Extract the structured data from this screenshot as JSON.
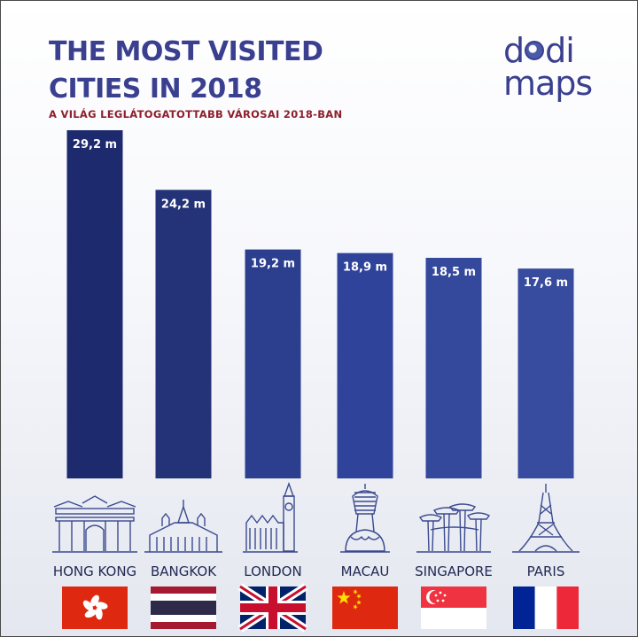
{
  "header": {
    "title_line1": "THE MOST VISITED",
    "title_line2": "CITIES IN 2018",
    "subtitle": "A VILÁG LEGLÁTOGATOTTABB VÁROSAI 2018-BAN"
  },
  "logo": {
    "top": "d",
    "top_end": "di",
    "bottom": "maps"
  },
  "colors": {
    "title": "#3a3f8f",
    "subtitle": "#8e1f2c",
    "bar_dark": "#1d2a6e",
    "bar_mid": "#2c3f8f",
    "bar_light": "#35489a"
  },
  "chart_data": {
    "type": "bar",
    "categories": [
      "HONG KONG",
      "BANGKOK",
      "LONDON",
      "MACAU",
      "SINGAPORE",
      "PARIS"
    ],
    "values": [
      29.2,
      24.2,
      19.2,
      18.9,
      18.5,
      17.6
    ],
    "value_labels": [
      "29,2 m",
      "24,2 m",
      "19,2 m",
      "18,9 m",
      "18,5 m",
      "17,6 m"
    ],
    "landmark_icons": [
      "gate-icon",
      "temple-icon",
      "big-ben-icon",
      "lotus-tower-icon",
      "supertree-icon",
      "eiffel-tower-icon"
    ],
    "flag_icons": [
      "hong-kong-flag-icon",
      "thailand-flag-icon",
      "uk-flag-icon",
      "china-flag-icon",
      "singapore-flag-icon",
      "france-flag-icon"
    ],
    "ylim": [
      0,
      29.2
    ],
    "grid": false,
    "legend": "none"
  }
}
